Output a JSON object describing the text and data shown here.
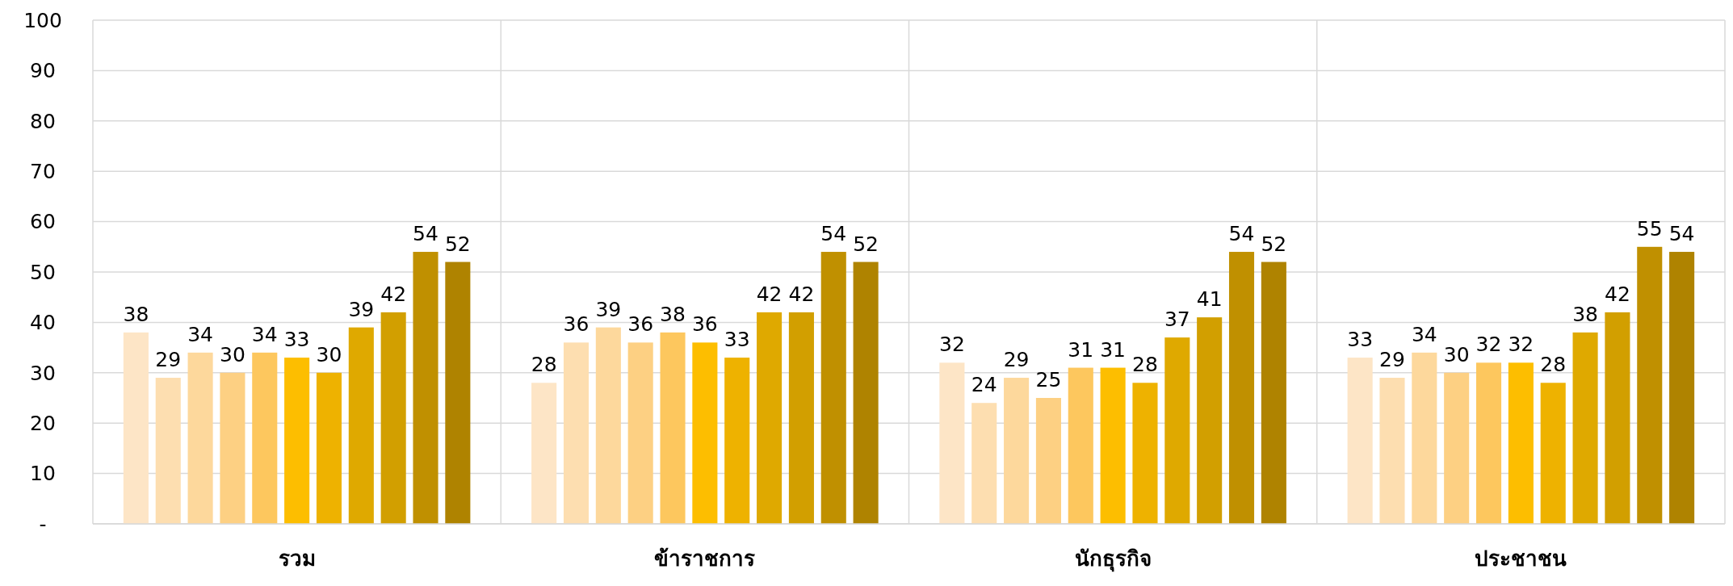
{
  "chart_data": {
    "type": "bar",
    "categories": [
      "รวม",
      "ข้าราชการ",
      "นักธุรกิจ",
      "ประชาชน"
    ],
    "series": [
      {
        "color": "#fde5c6",
        "values": [
          38,
          28,
          32,
          33
        ]
      },
      {
        "color": "#fddeb0",
        "values": [
          29,
          36,
          24,
          29
        ]
      },
      {
        "color": "#fdd89c",
        "values": [
          34,
          39,
          29,
          34
        ]
      },
      {
        "color": "#fdd083",
        "values": [
          30,
          36,
          25,
          30
        ]
      },
      {
        "color": "#fdc75e",
        "values": [
          34,
          38,
          31,
          32
        ]
      },
      {
        "color": "#fdbe00",
        "values": [
          33,
          36,
          31,
          32
        ]
      },
      {
        "color": "#eeb200",
        "values": [
          30,
          33,
          28,
          28
        ]
      },
      {
        "color": "#dfa900",
        "values": [
          39,
          42,
          37,
          38
        ]
      },
      {
        "color": "#d29f00",
        "values": [
          42,
          42,
          41,
          42
        ]
      },
      {
        "color": "#c09000",
        "values": [
          54,
          54,
          54,
          55
        ]
      },
      {
        "color": "#af8300",
        "values": [
          52,
          52,
          52,
          54
        ]
      }
    ],
    "ylim": [
      0,
      100
    ],
    "yticks": [
      {
        "value": 0,
        "label": "-"
      },
      10,
      20,
      30,
      40,
      50,
      60,
      70,
      80,
      90,
      100
    ],
    "grid": true,
    "data_labels": true
  }
}
